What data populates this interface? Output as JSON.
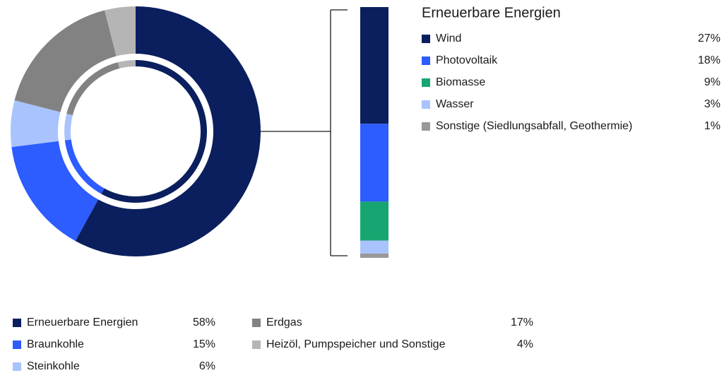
{
  "chart_data": [
    {
      "type": "donut",
      "categories": [
        "Erneuerbare Energien",
        "Braunkohle",
        "Steinkohle",
        "Erdgas",
        "Heizöl, Pumpspeicher und Sonstige"
      ],
      "values": [
        58,
        15,
        6,
        17,
        4
      ],
      "value_labels": [
        "58%",
        "15%",
        "6%",
        "17%",
        "4%"
      ],
      "colors": [
        "#0b1f5e",
        "#2d5cff",
        "#a9c3ff",
        "#828282",
        "#b5b5b5"
      ]
    },
    {
      "type": "stacked-bar",
      "title": "Erneuerbare Energien",
      "categories": [
        "Wind",
        "Photovoltaik",
        "Biomasse",
        "Wasser",
        "Sonstige (Siedlungsabfall, Geothermie)"
      ],
      "values": [
        27,
        18,
        9,
        3,
        1
      ],
      "value_labels": [
        "27%",
        "18%",
        "9%",
        "3%",
        "1%"
      ],
      "colors": [
        "#0b1f5e",
        "#2d5cff",
        "#17a672",
        "#a9c3ff",
        "#999999"
      ]
    }
  ]
}
